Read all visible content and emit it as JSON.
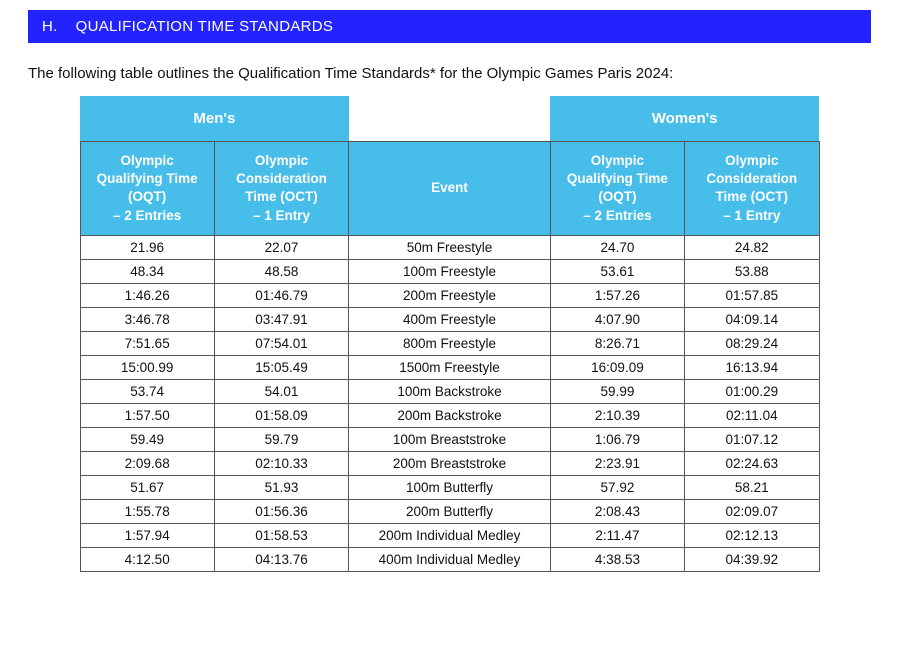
{
  "section": {
    "letter": "H.",
    "title": "QUALIFICATION TIME STANDARDS"
  },
  "intro": "The following table outlines the Qualification Time Standards* for the Olympic Games Paris 2024:",
  "tbl": {
    "group_men": "Men's",
    "group_women": "Women's",
    "col_event": "Event",
    "col_oqt": "Olympic\nQualifying Time\n(OQT)\n– 2 Entries",
    "col_oct": "Olympic\nConsideration\nTime (OCT)\n– 1 Entry",
    "header_bg": "#47bde9",
    "banner_bg": "#2323ff",
    "columns": [
      "men_oqt",
      "men_oct",
      "event",
      "women_oqt",
      "women_oct"
    ],
    "rows": [
      {
        "men_oqt": "21.96",
        "men_oct": "22.07",
        "event": "50m Freestyle",
        "women_oqt": "24.70",
        "women_oct": "24.82"
      },
      {
        "men_oqt": "48.34",
        "men_oct": "48.58",
        "event": "100m Freestyle",
        "women_oqt": "53.61",
        "women_oct": "53.88"
      },
      {
        "men_oqt": "1:46.26",
        "men_oct": "01:46.79",
        "event": "200m Freestyle",
        "women_oqt": "1:57.26",
        "women_oct": "01:57.85"
      },
      {
        "men_oqt": "3:46.78",
        "men_oct": "03:47.91",
        "event": "400m Freestyle",
        "women_oqt": "4:07.90",
        "women_oct": "04:09.14"
      },
      {
        "men_oqt": "7:51.65",
        "men_oct": "07:54.01",
        "event": "800m Freestyle",
        "women_oqt": "8:26.71",
        "women_oct": "08:29.24"
      },
      {
        "men_oqt": "15:00.99",
        "men_oct": "15:05.49",
        "event": "1500m Freestyle",
        "women_oqt": "16:09.09",
        "women_oct": "16:13.94"
      },
      {
        "men_oqt": "53.74",
        "men_oct": "54.01",
        "event": "100m Backstroke",
        "women_oqt": "59.99",
        "women_oct": "01:00.29"
      },
      {
        "men_oqt": "1:57.50",
        "men_oct": "01:58.09",
        "event": "200m Backstroke",
        "women_oqt": "2:10.39",
        "women_oct": "02:11.04"
      },
      {
        "men_oqt": "59.49",
        "men_oct": "59.79",
        "event": "100m Breaststroke",
        "women_oqt": "1:06.79",
        "women_oct": "01:07.12"
      },
      {
        "men_oqt": "2:09.68",
        "men_oct": "02:10.33",
        "event": "200m Breaststroke",
        "women_oqt": "2:23.91",
        "women_oct": "02:24.63"
      },
      {
        "men_oqt": "51.67",
        "men_oct": "51.93",
        "event": "100m Butterfly",
        "women_oqt": "57.92",
        "women_oct": "58.21"
      },
      {
        "men_oqt": "1:55.78",
        "men_oct": "01:56.36",
        "event": "200m Butterfly",
        "women_oqt": "2:08.43",
        "women_oct": "02:09.07"
      },
      {
        "men_oqt": "1:57.94",
        "men_oct": "01:58.53",
        "event": "200m Individual Medley",
        "women_oqt": "2:11.47",
        "women_oct": "02:12.13"
      },
      {
        "men_oqt": "4:12.50",
        "men_oct": "04:13.76",
        "event": "400m Individual Medley",
        "women_oqt": "4:38.53",
        "women_oct": "04:39.92"
      }
    ]
  }
}
